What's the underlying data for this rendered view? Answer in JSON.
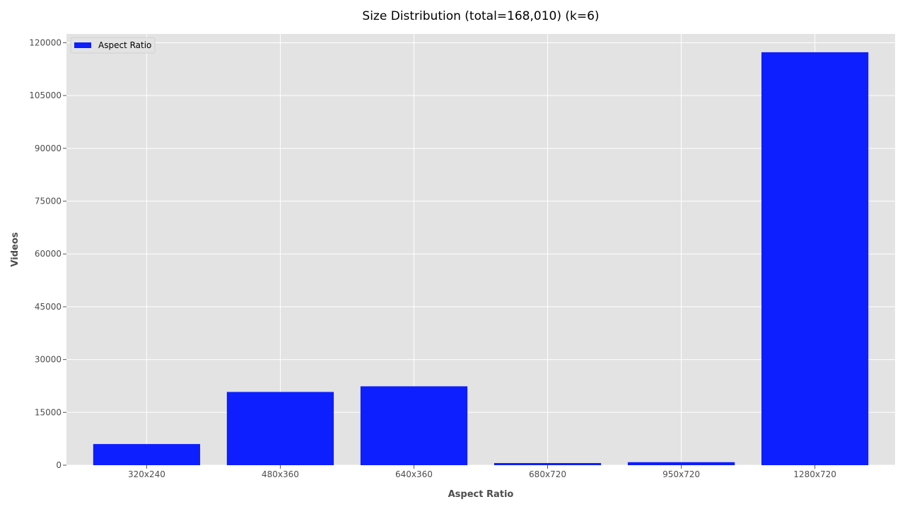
{
  "chart_data": {
    "type": "bar",
    "title": "Size Distribution (total=168,010) (k=6)",
    "xlabel": "Aspect Ratio",
    "ylabel": "Videos",
    "categories": [
      "320x240",
      "480x360",
      "640x360",
      "680x720",
      "950x720",
      "1280x720"
    ],
    "series": [
      {
        "name": "Aspect Ratio",
        "values": [
          6000,
          20800,
          22400,
          600,
          850,
          117300
        ]
      }
    ],
    "ylim": [
      0,
      122500
    ],
    "yticks": [
      0,
      15000,
      30000,
      45000,
      60000,
      75000,
      90000,
      105000,
      120000
    ],
    "grid": true,
    "legend_position": "top-left",
    "colors": {
      "bar": "#0d1eff",
      "plot_background": "#e3e3e3",
      "grid": "#ffffff"
    }
  }
}
